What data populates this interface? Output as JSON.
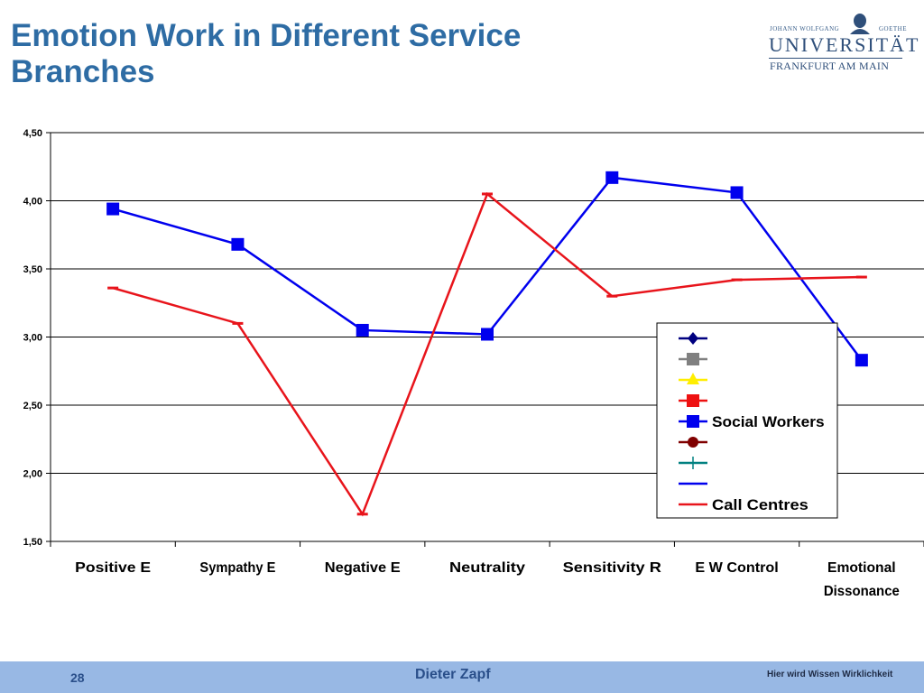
{
  "slide": {
    "title": "Emotion Work in Different Service Branches"
  },
  "logo": {
    "top_left": "JOHANN WOLFGANG",
    "top_right": "GOETHE",
    "name": "UNIVERSITÄT",
    "city": "FRANKFURT AM MAIN"
  },
  "footer": {
    "page": "28",
    "author": "Dieter Zapf",
    "slogan": "Hier wird Wissen Wirklichkeit"
  },
  "chart_data": {
    "type": "line",
    "categories": [
      "Positive E",
      "Sympathy E",
      "Negative E",
      "Neutrality",
      "Sensitivity R",
      "E W Control",
      "Emotional Dissonance"
    ],
    "ylim": [
      1.5,
      4.5
    ],
    "ytick_labels": [
      "1,50",
      "2,00",
      "2,50",
      "3,00",
      "3,50",
      "4,00",
      "4,50"
    ],
    "grid": true,
    "legend_position": "right-middle",
    "series": [
      {
        "name": "Social Workers",
        "color": "#0000ee",
        "marker": "square",
        "values": [
          3.94,
          3.68,
          3.05,
          3.02,
          4.17,
          4.06,
          2.83
        ]
      },
      {
        "name": "Call Centres",
        "color": "#e8141b",
        "marker": "dash",
        "values": [
          3.36,
          3.1,
          1.7,
          4.05,
          3.3,
          3.42,
          3.44
        ]
      }
    ],
    "legend_entries": [
      {
        "label": "",
        "color": "#000080",
        "marker": "diamond"
      },
      {
        "label": "",
        "color": "#808080",
        "marker": "square"
      },
      {
        "label": "",
        "color": "#ffee00",
        "marker": "triangle"
      },
      {
        "label": "",
        "color": "#ee1111",
        "marker": "square"
      },
      {
        "label": "Social Workers",
        "color": "#0000ee",
        "marker": "square"
      },
      {
        "label": "",
        "color": "#800000",
        "marker": "circle"
      },
      {
        "label": "",
        "color": "#008080",
        "marker": "plus"
      },
      {
        "label": "",
        "color": "#0000ee",
        "marker": "dash"
      },
      {
        "label": "Call Centres",
        "color": "#e8141b",
        "marker": "dash"
      }
    ]
  }
}
